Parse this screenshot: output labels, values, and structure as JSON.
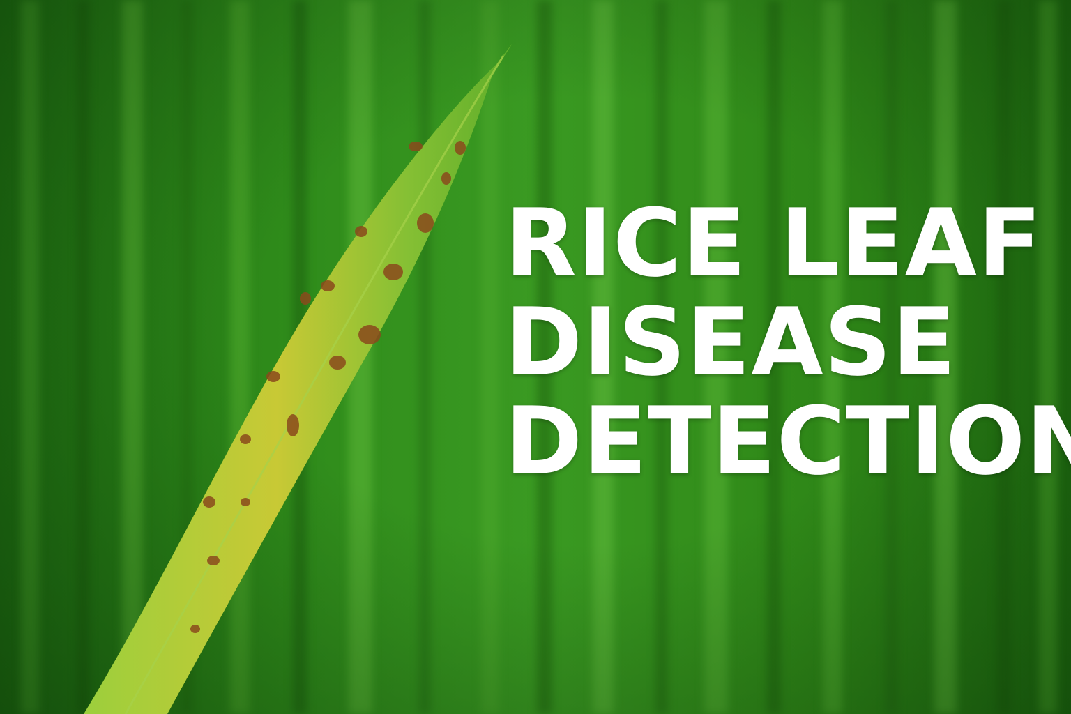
{
  "headline": {
    "line1": "RICE LEAF",
    "line2": "DISEASE",
    "line3": "DETECTION"
  },
  "colors": {
    "background_green": "#2e8a1a",
    "leaf_green": "#7cc13a",
    "leaf_yellow": "#d6c83a",
    "lesion_brown": "#8a4a1c",
    "text": "#ffffff"
  }
}
